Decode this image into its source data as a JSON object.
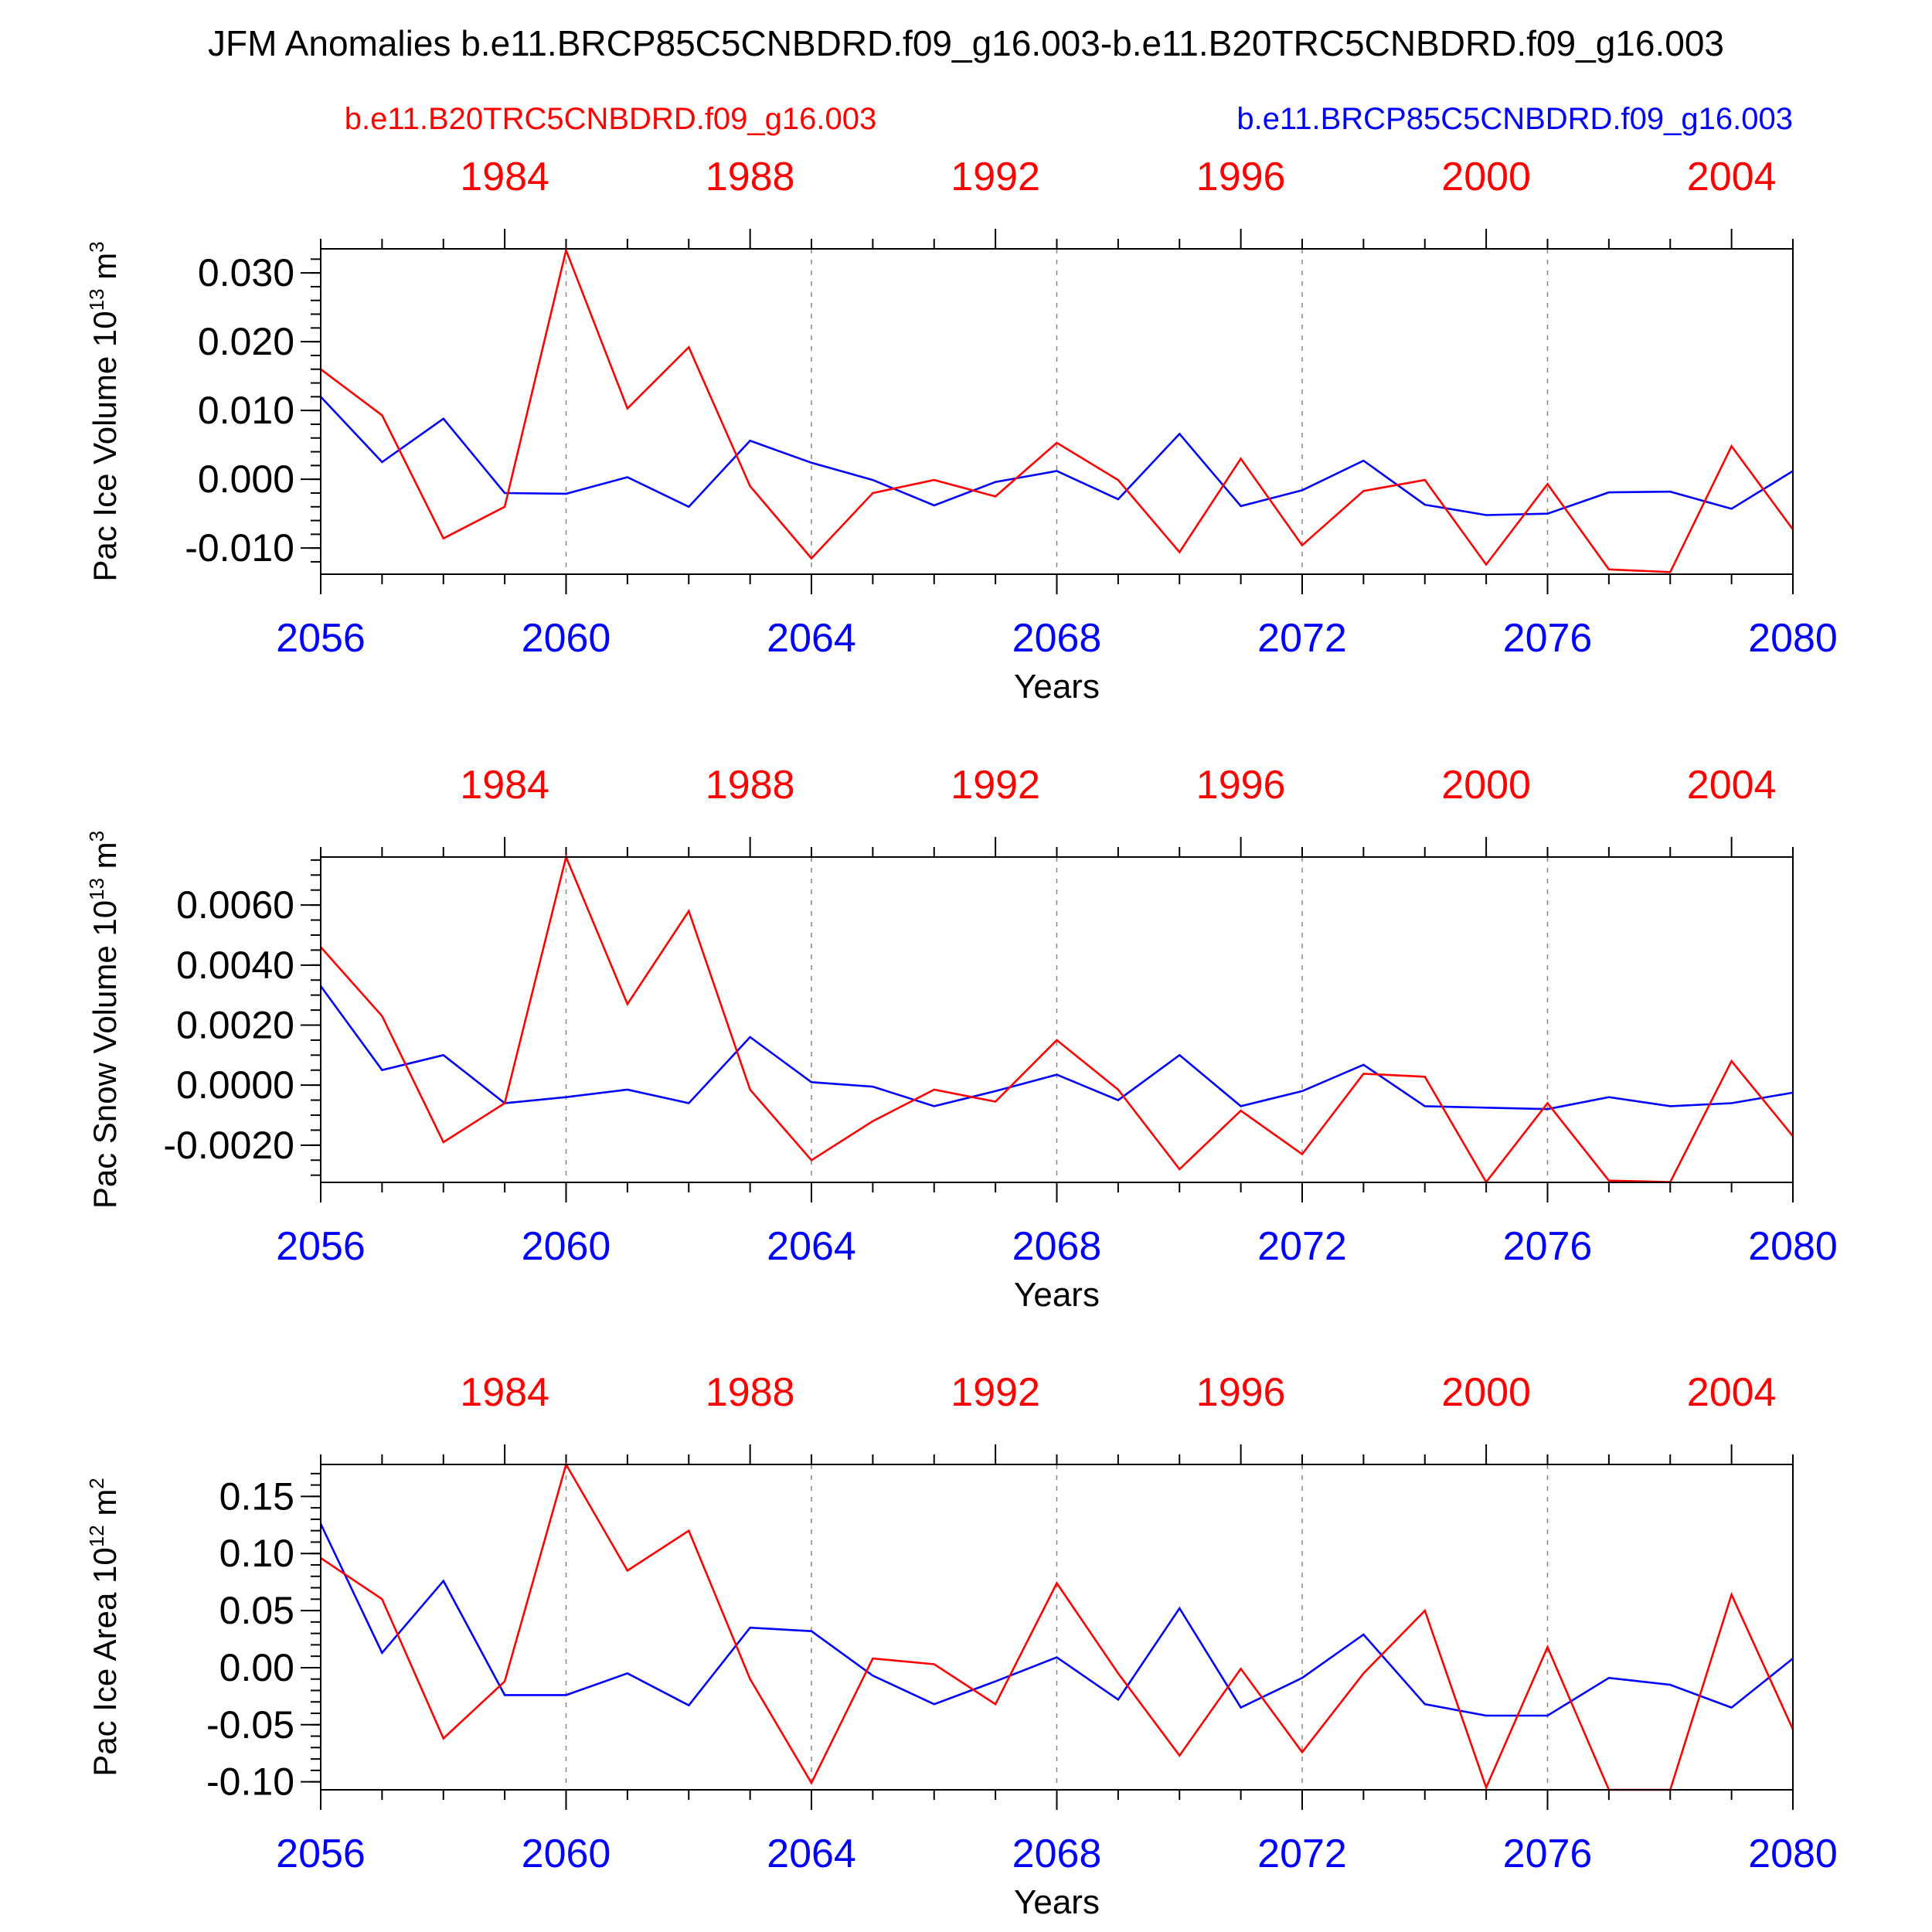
{
  "figure": {
    "title": "JFM Anomalies b.e11.BRCP85C5CNBDRD.f09_g16.003-b.e11.B20TRC5CNBDRD.f09_g16.003",
    "legend_left": "b.e11.B20TRC5CNBDRD.f09_g16.003",
    "legend_right": "b.e11.BRCP85C5CNBDRD.f09_g16.003",
    "colors": {
      "red": "#ff0000",
      "blue": "#0000ff",
      "axis": "#000000",
      "grid": "#888888"
    }
  },
  "chart_data": [
    {
      "type": "line",
      "ylabel": "Pac Ice Volume 10",
      "ylabel_exp": "13",
      "ylabel_unit": " m",
      "ylabel_unit_exp": "3",
      "xlabel": "Years",
      "bottom_axis": {
        "range": [
          2056,
          2080
        ],
        "ticks": [
          "2056",
          "2060",
          "2064",
          "2068",
          "2072",
          "2076",
          "2080"
        ],
        "color": "#0000ff"
      },
      "top_axis": {
        "range": [
          1981,
          2005
        ],
        "ticks": [
          "1984",
          "1988",
          "1992",
          "1996",
          "2000",
          "2004"
        ],
        "color": "#ff0000"
      },
      "ylim": [
        -0.0138,
        0.0335
      ],
      "yticks": [
        -0.01,
        0.0,
        0.01,
        0.02,
        0.03
      ],
      "ytick_labels": [
        "-0.010",
        "0.000",
        "0.010",
        "0.020",
        "0.030"
      ],
      "yminor_step": 0.002,
      "grid": "dashed vertical at 2060, 2064, 2068, 2072, 2076",
      "x": [
        2056,
        2057,
        2058,
        2059,
        2060,
        2061,
        2062,
        2063,
        2064,
        2065,
        2066,
        2067,
        2068,
        2069,
        2070,
        2071,
        2072,
        2073,
        2074,
        2075,
        2076,
        2077,
        2078,
        2079,
        2080
      ],
      "series": [
        {
          "name": "b.e11.BRCP85C5CNBDRD.f09_g16.003",
          "color": "#0000ff",
          "values": [
            0.012,
            0.0025,
            0.0088,
            -0.002,
            -0.0021,
            0.0003,
            -0.004,
            0.0056,
            0.0024,
            -0.0001,
            -0.0038,
            -0.0004,
            0.0012,
            -0.0029,
            0.0066,
            -0.0039,
            -0.0016,
            0.0027,
            -0.0037,
            -0.0052,
            -0.005,
            -0.0019,
            -0.0018,
            -0.0043,
            0.0012
          ]
        },
        {
          "name": "b.e11.B20TRC5CNBDRD.f09_g16.003",
          "color": "#ff0000",
          "values": [
            0.016,
            0.0093,
            -0.0086,
            -0.004,
            0.0333,
            0.0103,
            0.0192,
            -0.001,
            -0.0115,
            -0.002,
            -0.0001,
            -0.0025,
            0.0053,
            -0.0001,
            -0.0106,
            0.003,
            -0.0096,
            -0.0017,
            -0.0001,
            -0.0124,
            -0.0007,
            -0.0131,
            -0.0135,
            0.0048,
            -0.0073
          ]
        }
      ]
    },
    {
      "type": "line",
      "ylabel": "Pac Snow Volume 10",
      "ylabel_exp": "13",
      "ylabel_unit": " m",
      "ylabel_unit_exp": "3",
      "xlabel": "Years",
      "bottom_axis": {
        "range": [
          2056,
          2080
        ],
        "ticks": [
          "2056",
          "2060",
          "2064",
          "2068",
          "2072",
          "2076",
          "2080"
        ],
        "color": "#0000ff"
      },
      "top_axis": {
        "range": [
          1981,
          2005
        ],
        "ticks": [
          "1984",
          "1988",
          "1992",
          "1996",
          "2000",
          "2004"
        ],
        "color": "#ff0000"
      },
      "ylim": [
        -0.00324,
        0.0076
      ],
      "yticks": [
        -0.002,
        0.0,
        0.002,
        0.004,
        0.006
      ],
      "ytick_labels": [
        "-0.0020",
        "0.0000",
        "0.0020",
        "0.0040",
        "0.0060"
      ],
      "yminor_step": 0.0005,
      "grid": "dashed vertical at 2060, 2064, 2068, 2072, 2076",
      "x": [
        2056,
        2057,
        2058,
        2059,
        2060,
        2061,
        2062,
        2063,
        2064,
        2065,
        2066,
        2067,
        2068,
        2069,
        2070,
        2071,
        2072,
        2073,
        2074,
        2075,
        2076,
        2077,
        2078,
        2079,
        2080
      ],
      "series": [
        {
          "name": "b.e11.BRCP85C5CNBDRD.f09_g16.003",
          "color": "#0000ff",
          "values": [
            0.0033,
            0.0005,
            0.001,
            -0.0006,
            -0.0004,
            -0.00015,
            -0.0006,
            0.0016,
            0.0001,
            -5e-05,
            -0.0007,
            -0.0002,
            0.00035,
            -0.0005,
            0.001,
            -0.0007,
            -0.0002,
            0.00068,
            -0.0007,
            -0.00075,
            -0.0008,
            -0.0004,
            -0.0007,
            -0.0006,
            -0.00025
          ]
        },
        {
          "name": "b.e11.B20TRC5CNBDRD.f09_g16.003",
          "color": "#ff0000",
          "values": [
            0.0046,
            0.0023,
            -0.0019,
            -0.0006,
            0.0076,
            0.0027,
            0.0058,
            -0.00015,
            -0.0025,
            -0.0012,
            -0.00015,
            -0.00055,
            0.0015,
            -0.00015,
            -0.0028,
            -0.00085,
            -0.0023,
            0.00038,
            0.00028,
            -0.00323,
            -0.0006,
            -0.00318,
            -0.00323,
            0.0008,
            -0.0017
          ]
        }
      ]
    },
    {
      "type": "line",
      "ylabel": "Pac Ice Area 10",
      "ylabel_exp": "12",
      "ylabel_unit": " m",
      "ylabel_unit_exp": "2",
      "xlabel": "Years",
      "bottom_axis": {
        "range": [
          2056,
          2080
        ],
        "ticks": [
          "2056",
          "2060",
          "2064",
          "2068",
          "2072",
          "2076",
          "2080"
        ],
        "color": "#0000ff"
      },
      "top_axis": {
        "range": [
          1981,
          2005
        ],
        "ticks": [
          "1984",
          "1988",
          "1992",
          "1996",
          "2000",
          "2004"
        ],
        "color": "#ff0000"
      },
      "ylim": [
        -0.107,
        0.178
      ],
      "yticks": [
        -0.1,
        -0.05,
        0.0,
        0.05,
        0.1,
        0.15
      ],
      "ytick_labels": [
        "-0.10",
        "-0.05",
        "0.00",
        "0.05",
        "0.10",
        "0.15"
      ],
      "yminor_step": 0.01,
      "grid": "dashed vertical at 2060, 2064, 2068, 2072, 2076",
      "x": [
        2056,
        2057,
        2058,
        2059,
        2060,
        2061,
        2062,
        2063,
        2064,
        2065,
        2066,
        2067,
        2068,
        2069,
        2070,
        2071,
        2072,
        2073,
        2074,
        2075,
        2076,
        2077,
        2078,
        2079,
        2080
      ],
      "series": [
        {
          "name": "b.e11.BRCP85C5CNBDRD.f09_g16.003",
          "color": "#0000ff",
          "values": [
            0.126,
            0.013,
            0.076,
            -0.024,
            -0.024,
            -0.005,
            -0.033,
            0.035,
            0.032,
            -0.007,
            -0.032,
            -0.012,
            0.009,
            -0.028,
            0.052,
            -0.035,
            -0.009,
            0.029,
            -0.032,
            -0.042,
            -0.042,
            -0.009,
            -0.015,
            -0.035,
            0.008
          ]
        },
        {
          "name": "b.e11.B20TRC5CNBDRD.f09_g16.003",
          "color": "#ff0000",
          "values": [
            0.096,
            0.06,
            -0.062,
            -0.012,
            0.178,
            0.085,
            0.12,
            -0.01,
            -0.101,
            0.008,
            0.003,
            -0.032,
            0.074,
            -0.005,
            -0.077,
            -0.001,
            -0.074,
            -0.005,
            0.05,
            -0.105,
            0.018,
            -0.107,
            -0.107,
            0.064,
            -0.054
          ]
        }
      ]
    }
  ]
}
